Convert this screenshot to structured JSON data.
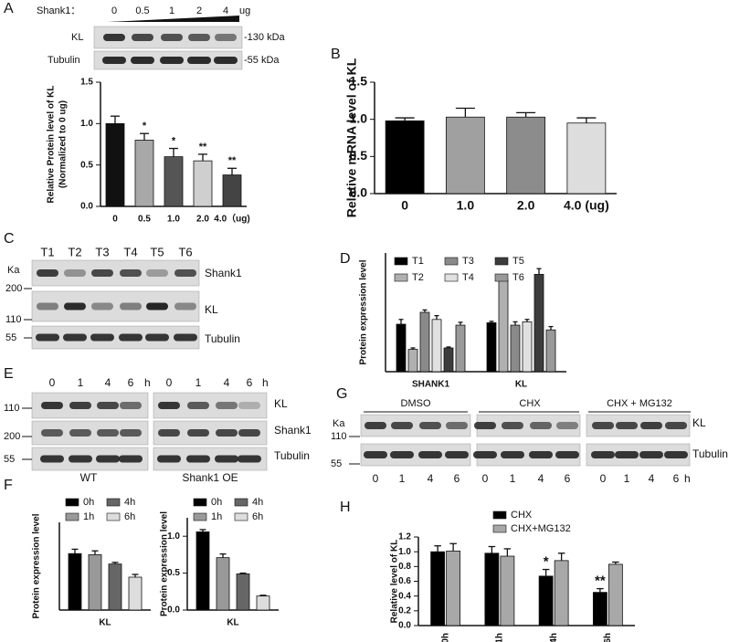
{
  "panels": [
    "A",
    "B",
    "C",
    "D",
    "E",
    "F",
    "G",
    "H"
  ],
  "blots": {
    "A": {
      "treatment": "Shank1：",
      "doses": [
        "0",
        "0.5",
        "1",
        "2",
        "4"
      ],
      "unit": "ug",
      "rows": [
        "KL",
        "Tubulin"
      ],
      "sizes": [
        "-130 kDa",
        "-55 kDa"
      ]
    },
    "C": {
      "lanes": [
        "T1",
        "T2",
        "T3",
        "T4",
        "T5",
        "T6"
      ],
      "marker_unit": "Ka",
      "markers": [
        "200",
        "110",
        "55"
      ],
      "rows": [
        "Shank1",
        "KL",
        "Tubulin"
      ]
    },
    "E": {
      "times": [
        "0",
        "1",
        "4",
        "6"
      ],
      "unit": "h",
      "groups": [
        "WT",
        "Shank1 OE"
      ],
      "markers": [
        "110",
        "200",
        "55"
      ],
      "rows": [
        "KL",
        "Shank1",
        "Tubulin"
      ]
    },
    "G": {
      "groups": [
        "DMSO",
        "CHX",
        "CHX + MG132"
      ],
      "times": [
        "0",
        "1",
        "4",
        "6"
      ],
      "unit": "h",
      "marker_unit": "Ka",
      "markers": [
        "110",
        "55"
      ],
      "rows": [
        "KL",
        "Tubulin"
      ]
    }
  },
  "chart_data": [
    {
      "type": "bar",
      "ylabel": [
        "Relative Protein level of KL",
        "(Normalized to 0 ug)"
      ],
      "categories": [
        "0",
        "0.5",
        "1.0",
        "2.0",
        "4.0（ug)"
      ],
      "values": [
        1.0,
        0.8,
        0.6,
        0.55,
        0.38
      ],
      "errors": [
        0.09,
        0.08,
        0.1,
        0.08,
        0.08
      ],
      "colors": [
        "#111111",
        "#a8a8a8",
        "#555555",
        "#cfcfcf",
        "#444444"
      ],
      "annotations": [
        {
          "index": 1,
          "text": "*"
        },
        {
          "index": 2,
          "text": "*"
        },
        {
          "index": 3,
          "text": "**"
        },
        {
          "index": 4,
          "text": "**"
        }
      ],
      "ylim": [
        0,
        1.5
      ],
      "yticks": [
        {
          "value": 0,
          "label": "0.0"
        },
        0.5,
        {
          "value": 1,
          "label": "1.0"
        },
        1.5
      ]
    },
    {
      "type": "bar",
      "ylabel": [
        "Relative mRNA level of KL"
      ],
      "categories": [
        "0",
        "1.0",
        "2.0",
        "4.0 (ug)"
      ],
      "values": [
        0.98,
        1.03,
        1.03,
        0.95
      ],
      "errors": [
        0.04,
        0.12,
        0.06,
        0.07
      ],
      "colors": [
        "#000000",
        "#a0a0a0",
        "#8c8c8c",
        "#dddddd"
      ],
      "ylim": [
        0,
        1.5
      ],
      "yticks": [
        {
          "value": 0,
          "label": "0.0"
        },
        0.5,
        {
          "value": 1,
          "label": "1.0"
        },
        1.5
      ]
    },
    {
      "type": "bar",
      "ylabel": [
        "Protein expression level"
      ],
      "categories": [
        "SHANK1",
        "KL"
      ],
      "series": [
        {
          "name": "T1",
          "color": "#000000",
          "values": [
            1.0,
            1.03
          ],
          "errors": [
            0.1,
            0.03
          ]
        },
        {
          "name": "T2",
          "color": "#b0b0b0",
          "values": [
            0.47,
            1.93
          ],
          "errors": [
            0.03,
            0.1
          ]
        },
        {
          "name": "T3",
          "color": "#8a8a8a",
          "values": [
            1.25,
            0.98
          ],
          "errors": [
            0.05,
            0.07
          ]
        },
        {
          "name": "T4",
          "color": "#e0e0e0",
          "values": [
            1.1,
            1.05
          ],
          "errors": [
            0.08,
            0.05
          ]
        },
        {
          "name": "T5",
          "color": "#3c3c3c",
          "values": [
            0.5,
            2.05
          ],
          "errors": [
            0.02,
            0.12
          ]
        },
        {
          "name": "T6",
          "color": "#9a9a9a",
          "values": [
            0.98,
            0.88
          ],
          "errors": [
            0.06,
            0.07
          ]
        }
      ],
      "ylim": [
        0,
        2.5
      ]
    },
    {
      "type": "bar",
      "ylabel": [
        "Protein expression level"
      ],
      "categories": [
        "KL"
      ],
      "series": [
        {
          "name": "0h",
          "color": "#000000",
          "values": [
            1.03
          ],
          "errors": [
            0.08
          ]
        },
        {
          "name": "1h",
          "color": "#999999",
          "values": [
            1.01
          ],
          "errors": [
            0.07
          ]
        },
        {
          "name": "4h",
          "color": "#666666",
          "values": [
            0.84
          ],
          "errors": [
            0.03
          ]
        },
        {
          "name": "6h",
          "color": "#dddddd",
          "values": [
            0.6
          ],
          "errors": [
            0.05
          ]
        }
      ],
      "ylim": [
        0,
        1.6
      ]
    },
    {
      "type": "bar",
      "ylabel": [
        "Protein expression level"
      ],
      "categories": [
        "KL"
      ],
      "series": [
        {
          "name": "0h",
          "color": "#000000",
          "values": [
            1.06
          ],
          "errors": [
            0.03
          ]
        },
        {
          "name": "1h",
          "color": "#999999",
          "values": [
            0.71
          ],
          "errors": [
            0.05
          ]
        },
        {
          "name": "4h",
          "color": "#666666",
          "values": [
            0.49
          ],
          "errors": [
            0.01
          ]
        },
        {
          "name": "6h",
          "color": "#dddddd",
          "values": [
            0.19
          ],
          "errors": [
            0.01
          ]
        }
      ],
      "ylim": [
        0,
        1.25
      ],
      "yticks": [
        {
          "value": 0,
          "label": "0.0"
        },
        0.5,
        {
          "value": 1,
          "label": "1.0"
        }
      ]
    },
    {
      "type": "bar",
      "ylabel": [
        "Relative level of KL"
      ],
      "categories": [
        "0h",
        "1h",
        "4h",
        "6h"
      ],
      "series": [
        {
          "name": "CHX",
          "color": "#000000",
          "values": [
            1.0,
            0.98,
            0.67,
            0.45
          ],
          "errors": [
            0.08,
            0.09,
            0.09,
            0.05
          ]
        },
        {
          "name": "CHX+MG132",
          "color": "#a8a8a8",
          "values": [
            1.01,
            0.94,
            0.88,
            0.83
          ],
          "errors": [
            0.1,
            0.1,
            0.1,
            0.03
          ]
        }
      ],
      "annotations": [
        {
          "series": 0,
          "index": 2,
          "text": "*"
        },
        {
          "series": 0,
          "index": 3,
          "text": "**"
        }
      ],
      "ylim": [
        0,
        1.2
      ],
      "yticks": [
        {
          "value": 0,
          "label": "0.0"
        },
        0.2,
        0.4,
        0.6,
        0.8,
        {
          "value": 1,
          "label": "1.0"
        },
        1.2
      ]
    }
  ]
}
